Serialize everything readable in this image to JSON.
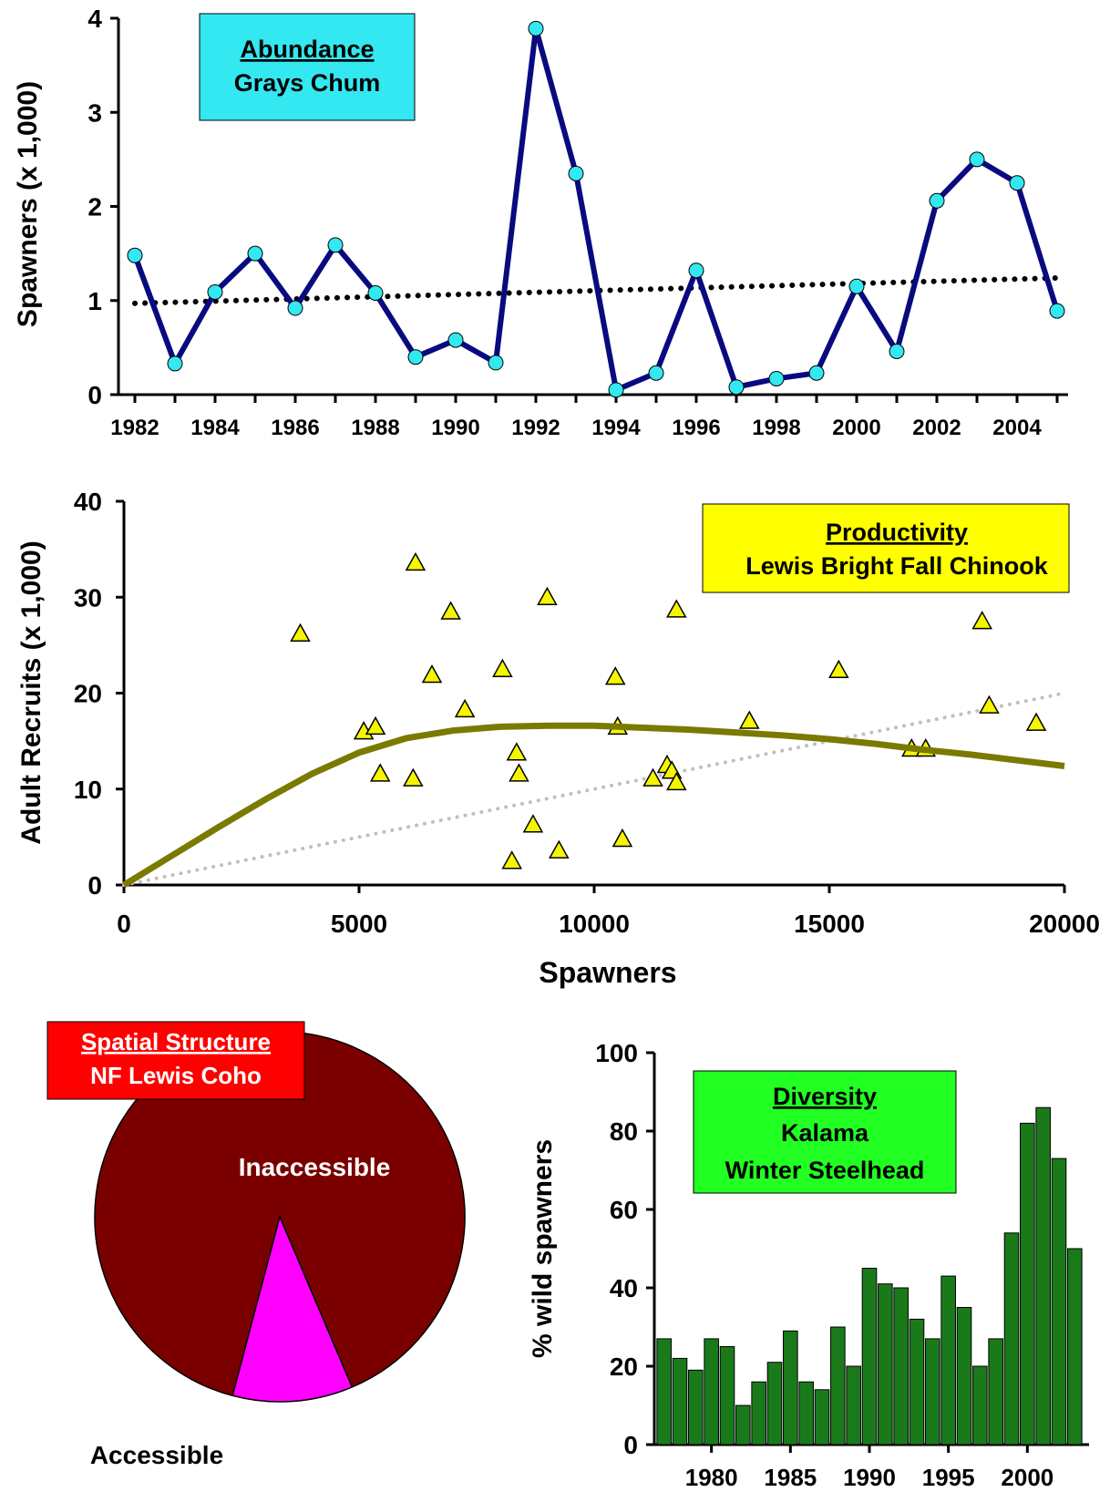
{
  "chart_data": [
    {
      "type": "line",
      "title": "Abundance",
      "subtitle": "Grays Chum",
      "ylabel": "Spawners (x 1,000)",
      "xlabel": "",
      "ylim": [
        0,
        4
      ],
      "yticks": [
        0,
        1,
        2,
        3,
        4
      ],
      "xlim": [
        1982,
        2005
      ],
      "xticks": [
        1982,
        1984,
        1986,
        1988,
        1990,
        1992,
        1994,
        1996,
        1998,
        2000,
        2002,
        2004
      ],
      "x": [
        1982,
        1983,
        1984,
        1985,
        1986,
        1987,
        1988,
        1989,
        1990,
        1991,
        1992,
        1993,
        1994,
        1995,
        1996,
        1997,
        1998,
        1999,
        2000,
        2001,
        2002,
        2003,
        2004,
        2005
      ],
      "y": [
        1.48,
        0.33,
        1.09,
        1.5,
        0.92,
        1.59,
        1.08,
        0.4,
        0.58,
        0.34,
        3.89,
        2.35,
        0.05,
        0.23,
        1.32,
        0.08,
        0.17,
        0.23,
        1.15,
        0.46,
        2.06,
        2.5,
        2.25,
        0.89
      ],
      "trend": {
        "x": [
          1982,
          2005
        ],
        "y": [
          0.97,
          1.24
        ]
      },
      "colors": {
        "line": "#0a0a80",
        "marker": "#33e8f0",
        "box": "#33e8f0",
        "trend": "#000000"
      },
      "grid": false
    },
    {
      "type": "scatter",
      "title": "Productivity",
      "subtitle": "Lewis Bright Fall Chinook",
      "xlabel": "Spawners",
      "ylabel": "Adult Recruits (x 1,000)",
      "xlim": [
        0,
        20000
      ],
      "xticks": [
        0,
        5000,
        10000,
        15000,
        20000
      ],
      "ylim": [
        0,
        40
      ],
      "yticks": [
        0,
        10,
        20,
        30,
        40
      ],
      "points": [
        [
          3750,
          26.2
        ],
        [
          5100,
          16.0
        ],
        [
          5350,
          16.5
        ],
        [
          5450,
          11.6
        ],
        [
          6150,
          11.1
        ],
        [
          6200,
          33.6
        ],
        [
          6550,
          21.9
        ],
        [
          6950,
          28.5
        ],
        [
          7250,
          18.3
        ],
        [
          8050,
          22.5
        ],
        [
          8250,
          2.5
        ],
        [
          8350,
          13.8
        ],
        [
          8400,
          11.6
        ],
        [
          8700,
          6.3
        ],
        [
          9000,
          30.0
        ],
        [
          9250,
          3.6
        ],
        [
          10450,
          21.7
        ],
        [
          10500,
          16.5
        ],
        [
          10600,
          4.8
        ],
        [
          11250,
          11.1
        ],
        [
          11550,
          12.5
        ],
        [
          11650,
          11.9
        ],
        [
          11750,
          10.7
        ],
        [
          11750,
          28.7
        ],
        [
          13300,
          17.1
        ],
        [
          15200,
          22.4
        ],
        [
          16750,
          14.2
        ],
        [
          17050,
          14.2
        ],
        [
          18250,
          27.5
        ],
        [
          18400,
          18.7
        ],
        [
          19400,
          16.9
        ]
      ],
      "curve": {
        "x": [
          0,
          1000,
          2000,
          3000,
          4000,
          5000,
          6000,
          7000,
          8000,
          9000,
          10000,
          11000,
          12000,
          13000,
          14000,
          15000,
          16000,
          17000,
          18000,
          19000,
          20000
        ],
        "y": [
          0,
          3.0,
          6.0,
          8.9,
          11.6,
          13.8,
          15.3,
          16.1,
          16.5,
          16.6,
          16.6,
          16.4,
          16.2,
          15.9,
          15.6,
          15.2,
          14.7,
          14.1,
          13.6,
          13.0,
          12.4
        ]
      },
      "replacement_line": {
        "x": [
          0,
          20000
        ],
        "y": [
          0,
          20
        ]
      },
      "colors": {
        "marker": "#f5f500",
        "curve": "#7a7a00",
        "replacement": "#c0c0c0",
        "box": "#ffff00"
      },
      "grid": false
    },
    {
      "type": "pie",
      "title": "Spatial Structure",
      "subtitle": "NF Lewis Coho",
      "slices": [
        {
          "label": "Inaccessible",
          "value": 89.5,
          "color": "#7a0000"
        },
        {
          "label": "Accessible",
          "value": 10.5,
          "color": "#ff00ff"
        }
      ],
      "colors": {
        "box": "#ff0000"
      }
    },
    {
      "type": "bar",
      "title": "Diversity",
      "subtitle_lines": [
        "Kalama",
        "Winter Steelhead"
      ],
      "ylabel": "% wild spawners",
      "xlabel": "",
      "ylim": [
        0,
        100
      ],
      "yticks": [
        0,
        20,
        40,
        60,
        80,
        100
      ],
      "xticks": [
        1980,
        1985,
        1990,
        1995,
        2000
      ],
      "categories": [
        1977,
        1978,
        1979,
        1980,
        1981,
        1982,
        1983,
        1984,
        1985,
        1986,
        1987,
        1988,
        1989,
        1990,
        1991,
        1992,
        1993,
        1994,
        1995,
        1996,
        1997,
        1998,
        1999,
        2000,
        2001,
        2002,
        2003
      ],
      "values": [
        27,
        22,
        19,
        27,
        25,
        10,
        16,
        21,
        29,
        16,
        14,
        30,
        20,
        45,
        41,
        40,
        32,
        27,
        43,
        35,
        20,
        27,
        54,
        82,
        86,
        73,
        50
      ],
      "colors": {
        "bar": "#1a7a1a",
        "box": "#22ff22"
      },
      "grid": false
    }
  ]
}
